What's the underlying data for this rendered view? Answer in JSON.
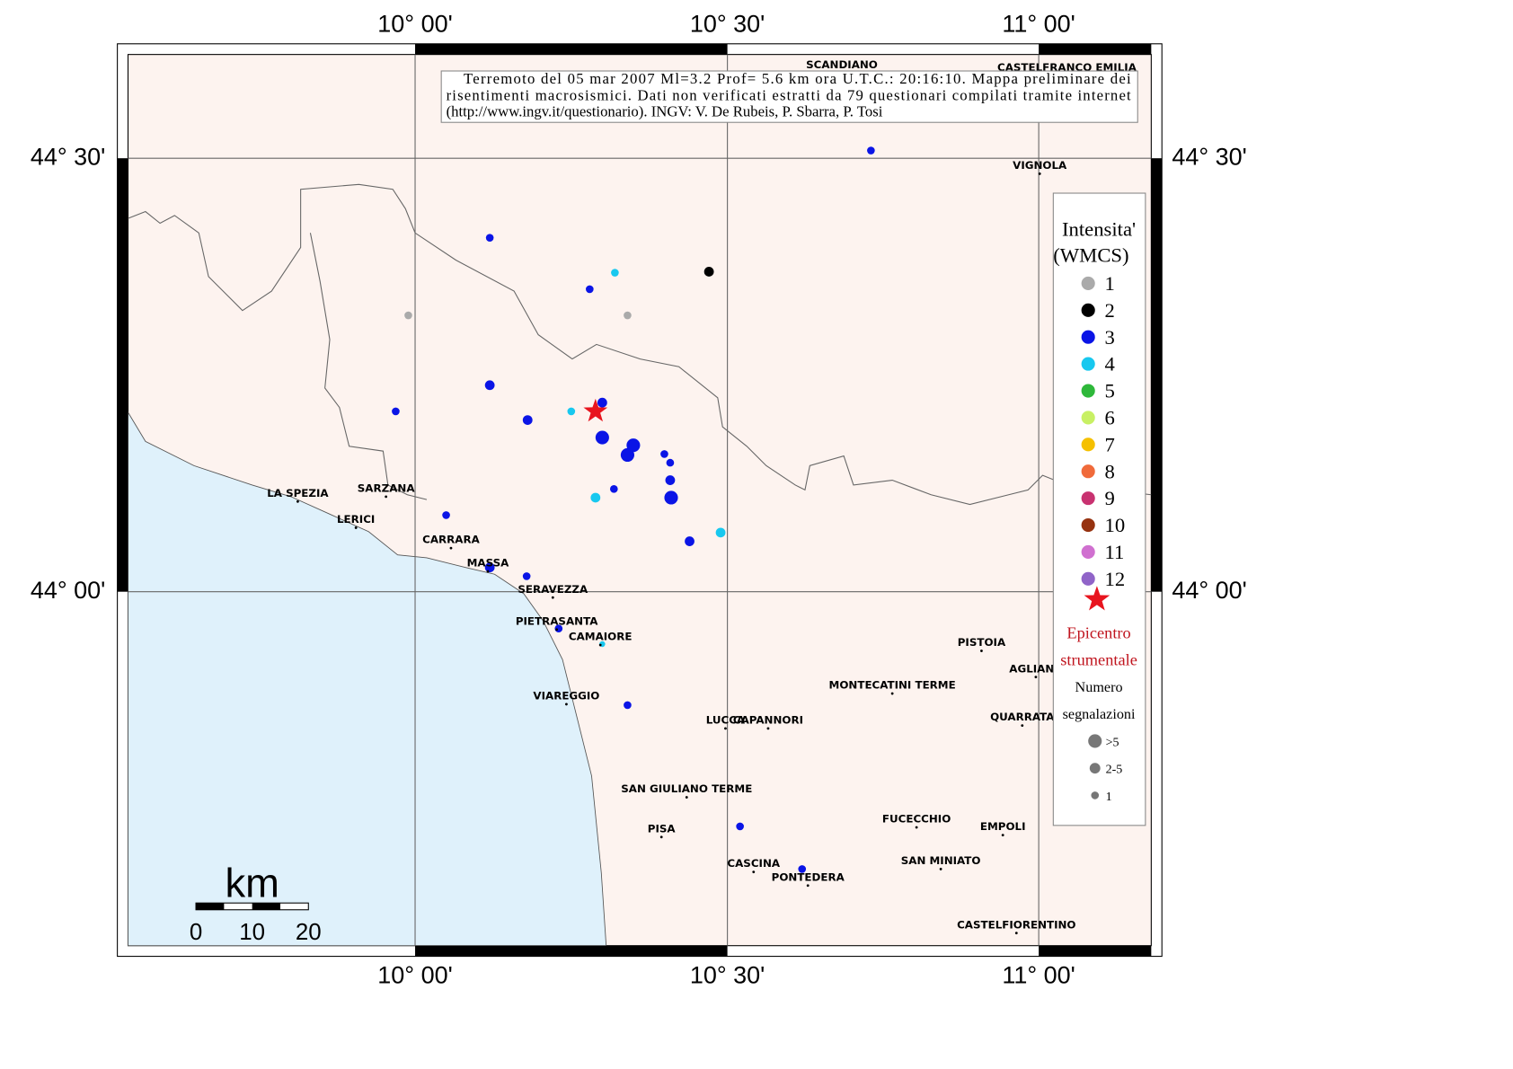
{
  "header": {
    "lines": [
      "Terremoto del 05 mar 2007 Ml=3.2 Prof= 5.6 km ora U.T.C.: 20:16:10.  Mappa preliminare dei",
      "risentimenti macrosismici.   Dati non verificati estratti da 79 questionari compilati tramite internet",
      "(http://www.ingv.it/questionario).   INGV: V.  De Rubeis, P.  Sbarra, P.  Tosi"
    ]
  },
  "axes": {
    "lon_labels": [
      "10° 00'",
      "10° 30'",
      "11° 00'"
    ],
    "lat_labels": [
      "44° 30'",
      "44° 00'"
    ]
  },
  "places": [
    "SCANDIANO",
    "CASTELFRANCO EMILIA",
    "VIGNOLA",
    "LA SPEZIA",
    "SARZANA",
    "LERICI",
    "CARRARA",
    "MASSA",
    "SERAVEZZA",
    "PIETRASANTA",
    "CAMAIORE",
    "VIAREGGIO",
    "PISTOIA",
    "AGLIANA",
    "MONTECATINI TERME",
    "LUCCA",
    "CAPANNORI",
    "QUARRATA",
    "SAN GIULIANO TERME",
    "PISA",
    "FUCECCHIO",
    "EMPOLI",
    "CASCINA",
    "PONTEDERA",
    "SAN MINIATO",
    "CASTELFIORENTINO"
  ],
  "legend": {
    "title": [
      "Intensita'",
      "(WMCS)"
    ],
    "items": [
      {
        "label": "1",
        "color": "#aaaaaa"
      },
      {
        "label": "2",
        "color": "#000000"
      },
      {
        "label": "3",
        "color": "#0a14e6"
      },
      {
        "label": "4",
        "color": "#18c8ef"
      },
      {
        "label": "5",
        "color": "#2eb83a"
      },
      {
        "label": "6",
        "color": "#c8f064"
      },
      {
        "label": "7",
        "color": "#f5c000"
      },
      {
        "label": "8",
        "color": "#f06a3a"
      },
      {
        "label": "9",
        "color": "#c83270"
      },
      {
        "label": "10",
        "color": "#963210"
      },
      {
        "label": "11",
        "color": "#d070d0"
      },
      {
        "label": "12",
        "color": "#9064c8"
      }
    ],
    "epicenter": [
      "Epicentro",
      "strumentale"
    ],
    "count_title": [
      "Numero",
      "segnalazioni"
    ],
    "sizes": [
      ">5",
      "2-5",
      "1"
    ]
  },
  "scale": {
    "unit": "km",
    "labels": [
      "0",
      "10",
      "20"
    ]
  }
}
